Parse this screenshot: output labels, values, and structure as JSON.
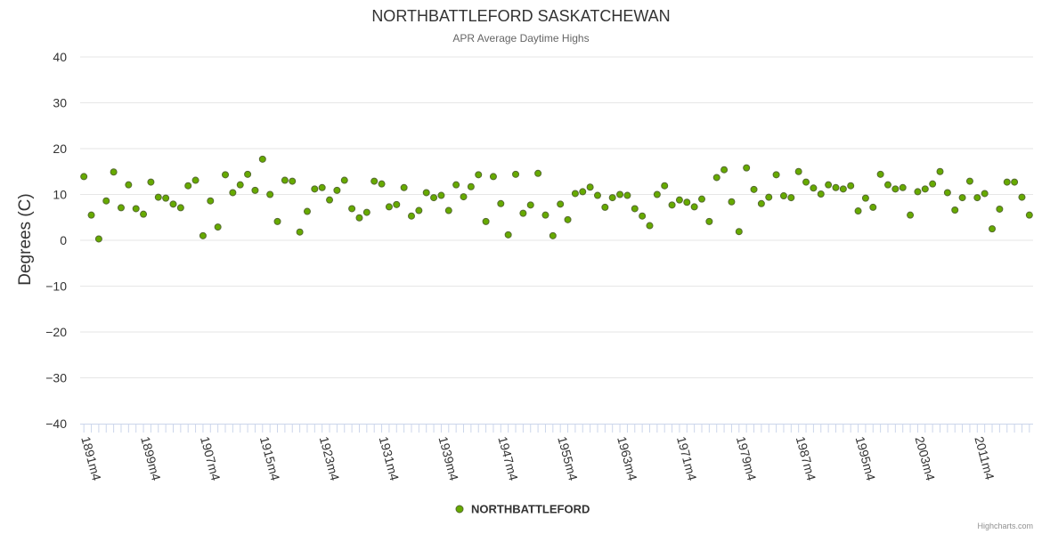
{
  "chart_data": {
    "type": "scatter",
    "title": "NORTHBATTLEFORD SASKATCHEWAN",
    "subtitle": "APR Average Daytime Highs",
    "ylabel": "Degrees (C)",
    "xlabel": "",
    "ylim": [
      -40,
      40
    ],
    "yticks": [
      40,
      30,
      20,
      10,
      0,
      -10,
      -20,
      -30,
      -40
    ],
    "x_start_year": 1891,
    "x_label_years": [
      1891,
      1899,
      1907,
      1915,
      1923,
      1931,
      1939,
      1947,
      1955,
      1963,
      1971,
      1979,
      1987,
      1995,
      2003,
      2011
    ],
    "x_label_suffix": "m4",
    "grid": true,
    "legend_position": "bottom-center",
    "series": [
      {
        "name": "NORTHBATTLEFORD",
        "color": "#66aa00",
        "marker_stroke": "#556b2f",
        "values": [
          13.9,
          5.5,
          0.3,
          8.6,
          14.9,
          7.1,
          12.1,
          6.9,
          5.7,
          12.7,
          9.4,
          9.2,
          7.9,
          7.1,
          11.9,
          13.1,
          1.0,
          8.6,
          2.9,
          14.3,
          10.4,
          12.1,
          14.4,
          10.9,
          17.7,
          10.0,
          4.1,
          13.1,
          12.9,
          1.8,
          6.3,
          11.2,
          11.5,
          8.8,
          10.9,
          13.1,
          6.9,
          4.9,
          6.1,
          12.9,
          12.3,
          7.3,
          7.8,
          11.5,
          5.3,
          6.5,
          10.4,
          9.3,
          9.8,
          6.5,
          12.1,
          9.5,
          11.7,
          14.3,
          4.1,
          13.9,
          8.0,
          1.2,
          14.4,
          5.9,
          7.7,
          14.6,
          5.5,
          1.0,
          7.9,
          4.5,
          10.2,
          10.6,
          11.6,
          9.8,
          7.2,
          9.3,
          10.0,
          9.8,
          6.9,
          5.3,
          3.2,
          10.0,
          11.9,
          7.7,
          8.8,
          8.3,
          7.3,
          9.0,
          4.1,
          13.7,
          15.4,
          8.4,
          1.9,
          15.8,
          11.1,
          8.0,
          9.4,
          14.3,
          9.7,
          9.3,
          15.0,
          12.7,
          11.4,
          10.1,
          12.1,
          11.5,
          11.2,
          11.9,
          6.4,
          9.2,
          7.2,
          14.4,
          12.1,
          11.2,
          11.5,
          5.5,
          10.6,
          11.2,
          12.3,
          15.0,
          10.4,
          6.6,
          9.3,
          12.9,
          9.3,
          10.2,
          2.5,
          6.8,
          12.7,
          12.7,
          9.4,
          5.5
        ]
      }
    ]
  },
  "credits": "Highcharts.com"
}
